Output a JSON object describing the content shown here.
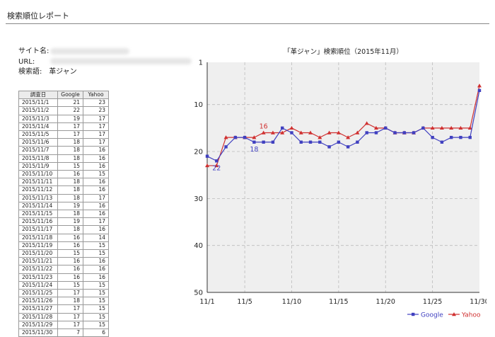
{
  "page_title": "検索順位レポート",
  "info": {
    "site_label": "サイト名:",
    "url_label": "URL:",
    "keyword_label": "検索語:",
    "keyword_value": "革ジャン"
  },
  "table": {
    "headers": [
      "調査日",
      "Google",
      "Yahoo"
    ],
    "rows": [
      [
        "2015/11/1",
        "21",
        "23"
      ],
      [
        "2015/11/2",
        "22",
        "23"
      ],
      [
        "2015/11/3",
        "19",
        "17"
      ],
      [
        "2015/11/4",
        "17",
        "17"
      ],
      [
        "2015/11/5",
        "17",
        "17"
      ],
      [
        "2015/11/6",
        "18",
        "17"
      ],
      [
        "2015/11/7",
        "18",
        "16"
      ],
      [
        "2015/11/8",
        "18",
        "16"
      ],
      [
        "2015/11/9",
        "15",
        "16"
      ],
      [
        "2015/11/10",
        "16",
        "15"
      ],
      [
        "2015/11/11",
        "18",
        "16"
      ],
      [
        "2015/11/12",
        "18",
        "16"
      ],
      [
        "2015/11/13",
        "18",
        "17"
      ],
      [
        "2015/11/14",
        "19",
        "16"
      ],
      [
        "2015/11/15",
        "18",
        "16"
      ],
      [
        "2015/11/16",
        "19",
        "17"
      ],
      [
        "2015/11/17",
        "18",
        "16"
      ],
      [
        "2015/11/18",
        "16",
        "14"
      ],
      [
        "2015/11/19",
        "16",
        "15"
      ],
      [
        "2015/11/20",
        "15",
        "15"
      ],
      [
        "2015/11/21",
        "16",
        "16"
      ],
      [
        "2015/11/22",
        "16",
        "16"
      ],
      [
        "2015/11/23",
        "16",
        "16"
      ],
      [
        "2015/11/24",
        "15",
        "15"
      ],
      [
        "2015/11/25",
        "17",
        "15"
      ],
      [
        "2015/11/26",
        "18",
        "15"
      ],
      [
        "2015/11/27",
        "17",
        "15"
      ],
      [
        "2015/11/28",
        "17",
        "15"
      ],
      [
        "2015/11/29",
        "17",
        "15"
      ],
      [
        "2015/11/30",
        "7",
        "6"
      ]
    ]
  },
  "chart_data": {
    "type": "line",
    "title": "「革ジャン」検索順位（2015年11月）",
    "x": [
      1,
      2,
      3,
      4,
      5,
      6,
      7,
      8,
      9,
      10,
      11,
      12,
      13,
      14,
      15,
      16,
      17,
      18,
      19,
      20,
      21,
      22,
      23,
      24,
      25,
      26,
      27,
      28,
      29,
      30
    ],
    "x_tick_values": [
      1,
      5,
      10,
      15,
      20,
      25,
      30
    ],
    "x_tick_labels": [
      "11/1",
      "11/5",
      "11/10",
      "11/15",
      "11/20",
      "11/25",
      "11/30"
    ],
    "y_ticks": [
      1,
      10,
      20,
      30,
      40,
      50
    ],
    "ylim": [
      1,
      50
    ],
    "y_inverted": true,
    "grid": true,
    "legend_position": "bottom-right",
    "series": [
      {
        "name": "Google",
        "color": "#4040c0",
        "marker": "square",
        "values": [
          21,
          22,
          19,
          17,
          17,
          18,
          18,
          18,
          15,
          16,
          18,
          18,
          18,
          19,
          18,
          19,
          18,
          16,
          16,
          15,
          16,
          16,
          16,
          15,
          17,
          18,
          17,
          17,
          17,
          7
        ]
      },
      {
        "name": "Yahoo",
        "color": "#d03030",
        "marker": "triangle",
        "values": [
          23,
          23,
          17,
          17,
          17,
          17,
          16,
          16,
          16,
          15,
          16,
          16,
          17,
          16,
          16,
          17,
          16,
          14,
          15,
          15,
          16,
          16,
          16,
          15,
          15,
          15,
          15,
          15,
          15,
          6
        ]
      }
    ],
    "annotations": [
      {
        "series": "Google",
        "x": 2,
        "text": "22"
      },
      {
        "series": "Google",
        "x": 6,
        "text": "18"
      },
      {
        "series": "Yahoo",
        "x": 7,
        "text": "16"
      }
    ]
  }
}
